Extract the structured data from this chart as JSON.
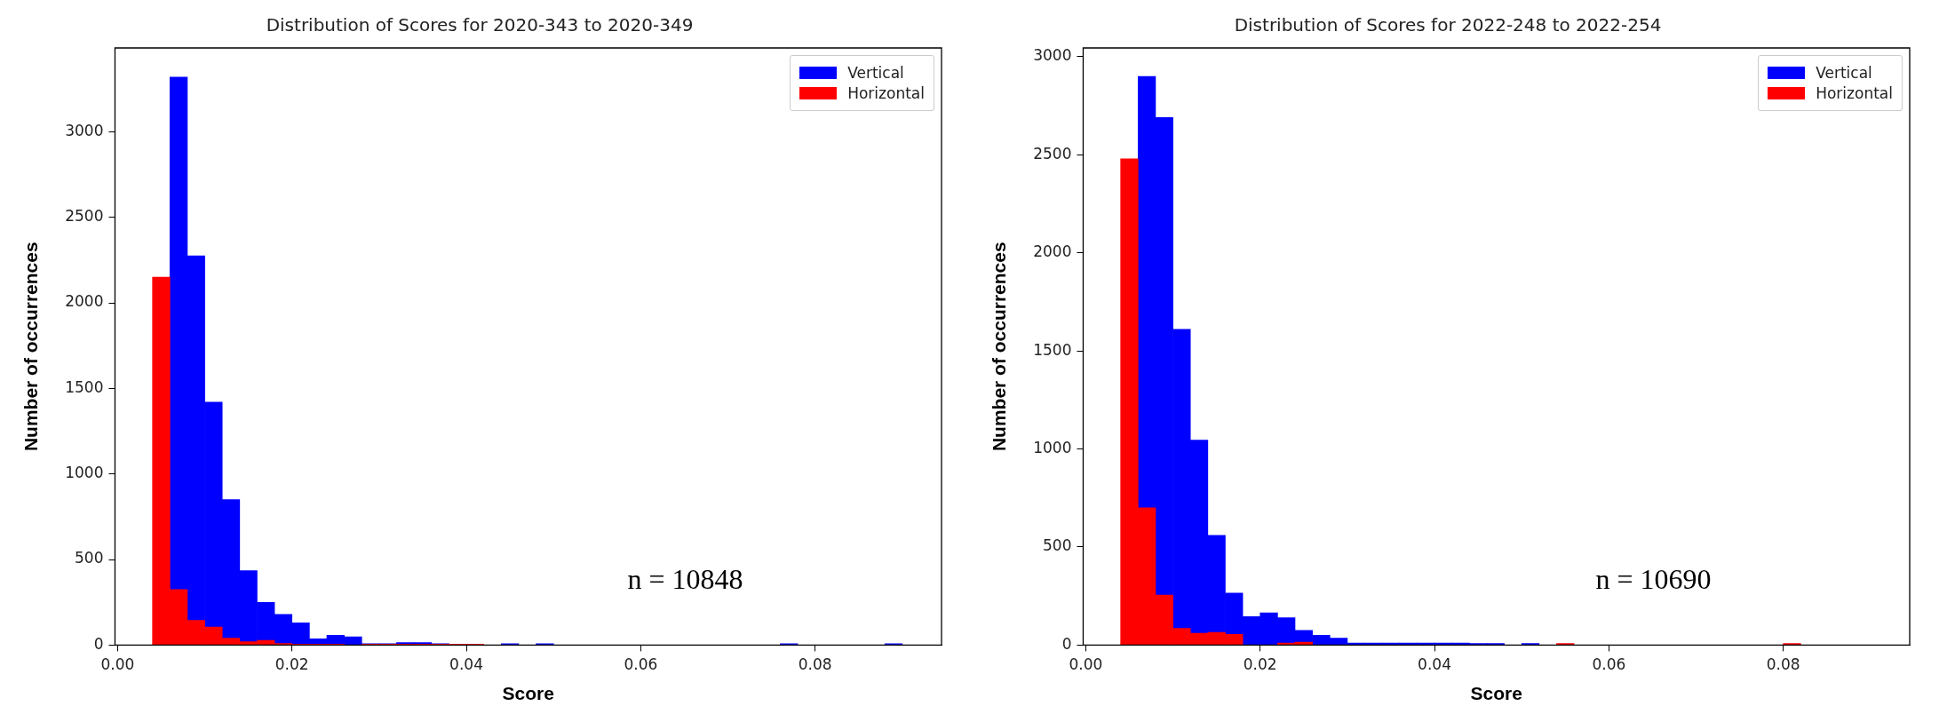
{
  "chart_data": [
    {
      "type": "histogram",
      "title": "Distribution of Scores for 2020-343 to 2020-349",
      "xlabel": "Score",
      "ylabel": "Number of occurrences",
      "bins": [
        0.004,
        0.006,
        0.008,
        0.01,
        0.012,
        0.014,
        0.016,
        0.018,
        0.02,
        0.022,
        0.024,
        0.026,
        0.028,
        0.03,
        0.032,
        0.034,
        0.036,
        0.038,
        0.04,
        0.042,
        0.044,
        0.046,
        0.048,
        0.05,
        0.052,
        0.054,
        0.056,
        0.058,
        0.06,
        0.062,
        0.064,
        0.066,
        0.068,
        0.07,
        0.072,
        0.074,
        0.076,
        0.078,
        0.08,
        0.082,
        0.084,
        0.086,
        0.088,
        0.09
      ],
      "series": [
        {
          "name": "Vertical",
          "color": "#0000ff",
          "values": [
            0,
            3320,
            2275,
            1420,
            850,
            435,
            250,
            180,
            130,
            37,
            58,
            49,
            8,
            8,
            15,
            15,
            8,
            5,
            5,
            0,
            8,
            0,
            8,
            0,
            0,
            0,
            0,
            0,
            0,
            0,
            0,
            0,
            0,
            0,
            0,
            0,
            8,
            0,
            0,
            0,
            0,
            0,
            8
          ]
        },
        {
          "name": "Horizontal",
          "color": "#ff0000",
          "values": [
            2150,
            325,
            145,
            105,
            40,
            20,
            28,
            10,
            5,
            5,
            5,
            0,
            5,
            5,
            5,
            5,
            5,
            5,
            5,
            0,
            0,
            0,
            0,
            0,
            0,
            0,
            0,
            0,
            0,
            0,
            0,
            0,
            0,
            0,
            0,
            0,
            0,
            0,
            0,
            0,
            0,
            0,
            0
          ]
        }
      ],
      "xlim": [
        -0.0003,
        0.0945
      ],
      "xticks": [
        {
          "value": 0,
          "label": "0.00"
        },
        0.02,
        0.04,
        0.06,
        0.08
      ],
      "ylim": [
        0,
        3490
      ],
      "yticks": [
        0,
        500,
        1000,
        1500,
        2000,
        2500,
        3000
      ],
      "legend": "top right",
      "grid": false,
      "annotations": [
        "n = 10848"
      ]
    },
    {
      "type": "histogram",
      "title": "Distribution of Scores for 2022-248 to 2022-254",
      "xlabel": "Score",
      "ylabel": "Number of occurrences",
      "bins": [
        0.004,
        0.006,
        0.008,
        0.01,
        0.012,
        0.014,
        0.016,
        0.018,
        0.02,
        0.022,
        0.024,
        0.026,
        0.028,
        0.03,
        0.032,
        0.034,
        0.036,
        0.038,
        0.04,
        0.042,
        0.044,
        0.046,
        0.048,
        0.05,
        0.052,
        0.054,
        0.056,
        0.058,
        0.06,
        0.062,
        0.064,
        0.066,
        0.068,
        0.07,
        0.072,
        0.074,
        0.076,
        0.078,
        0.08,
        0.082,
        0.084,
        0.086,
        0.088,
        0.09
      ],
      "series": [
        {
          "name": "Vertical",
          "color": "#0000ff",
          "values": [
            0,
            2900,
            2690,
            1610,
            1045,
            560,
            265,
            145,
            165,
            140,
            75,
            50,
            35,
            10,
            10,
            10,
            10,
            10,
            10,
            10,
            8,
            8,
            0,
            8,
            0,
            0,
            0,
            0,
            0,
            0,
            0,
            0,
            0,
            0,
            0,
            0,
            0,
            0,
            0,
            0,
            0,
            0,
            0
          ]
        },
        {
          "name": "Horizontal",
          "color": "#ff0000",
          "values": [
            2480,
            700,
            255,
            85,
            60,
            65,
            55,
            0,
            0,
            10,
            15,
            0,
            0,
            0,
            0,
            0,
            0,
            0,
            0,
            0,
            0,
            0,
            0,
            0,
            0,
            8,
            0,
            0,
            0,
            0,
            0,
            0,
            0,
            0,
            0,
            0,
            0,
            0,
            8,
            0,
            0,
            0,
            0
          ]
        }
      ],
      "xlim": [
        -0.0003,
        0.0945
      ],
      "xticks": [
        {
          "value": 0,
          "label": "0.00"
        },
        0.02,
        0.04,
        0.06,
        0.08
      ],
      "ylim": [
        0,
        3045
      ],
      "yticks": [
        0,
        500,
        1000,
        1500,
        2000,
        2500,
        3000
      ],
      "legend": "top right",
      "grid": false,
      "annotations": [
        "n = 10690"
      ]
    }
  ]
}
